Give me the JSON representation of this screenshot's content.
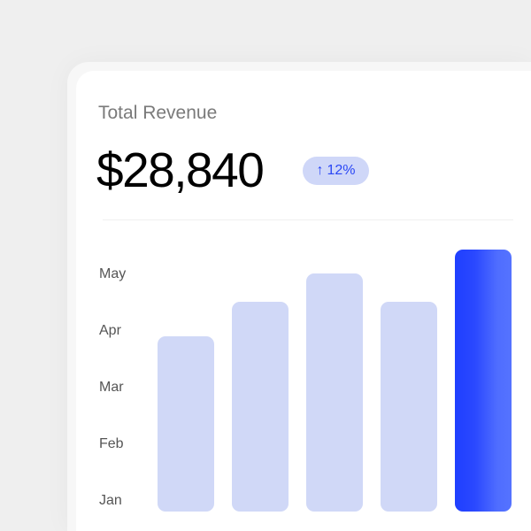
{
  "card": {
    "title": "Total Revenue",
    "amount": "$28,840",
    "badge": {
      "icon": "arrow-up-icon",
      "arrow": "↑",
      "text": "12%"
    }
  },
  "colors": {
    "accent": "#2a47f5",
    "bar": "#d0d8f7",
    "highlight_bar": "#1f3fff",
    "badge_bg": "#cfd7f8"
  },
  "chart_data": {
    "type": "bar",
    "y_tick_labels": [
      "May",
      "Apr",
      "Mar",
      "Feb",
      "Jan"
    ],
    "values_relative_percent": [
      67,
      80,
      91,
      80,
      100
    ],
    "highlighted_index": 4,
    "grid": false,
    "legend": "none"
  }
}
